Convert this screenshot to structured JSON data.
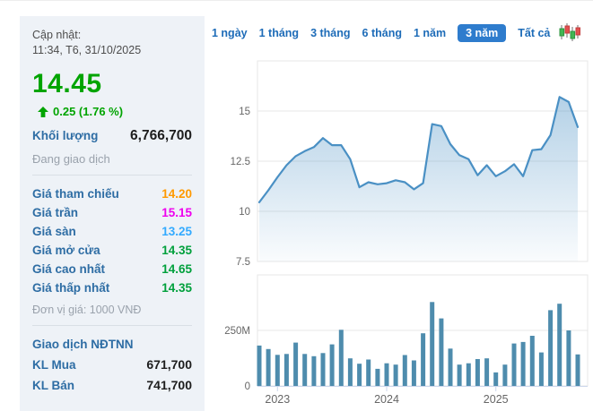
{
  "panel": {
    "updated_label": "Cập nhật:",
    "updated_time": "11:34, T6, 31/10/2025",
    "price": "14.45",
    "price_color": "#00a400",
    "change": "0.25 (1.76 %)",
    "volume_label": "Khối lượng",
    "volume_value": "6,766,700",
    "status": "Đang giao dịch",
    "rows": [
      {
        "label": "Giá tham chiếu",
        "value": "14.20",
        "color": "#ff9900"
      },
      {
        "label": "Giá trần",
        "value": "15.15",
        "color": "#ee00ee"
      },
      {
        "label": "Giá sàn",
        "value": "13.25",
        "color": "#33aaff"
      },
      {
        "label": "Giá mở cửa",
        "value": "14.35",
        "color": "#00a03c"
      },
      {
        "label": "Giá cao nhất",
        "value": "14.65",
        "color": "#00a03c"
      },
      {
        "label": "Giá thấp nhất",
        "value": "14.35",
        "color": "#00a03c"
      }
    ],
    "unit_note": "Đơn vị giá: 1000 VNĐ",
    "foreign_header": "Giao dịch NĐTNN",
    "foreign_rows": [
      {
        "label": "KL Mua",
        "value": "671,700"
      },
      {
        "label": "KL Bán",
        "value": "741,700"
      }
    ]
  },
  "tabs": {
    "items": [
      "1 ngày",
      "1 tháng",
      "3 tháng",
      "6 tháng",
      "1 năm",
      "3 năm",
      "Tất cả"
    ],
    "selected": "3 năm",
    "selected_bg": "#2e7ccd",
    "link_color": "#1e6cb8"
  },
  "chart_data": [
    {
      "type": "area",
      "title": "",
      "xlabel": "",
      "ylabel": "",
      "x": [
        "11/2022",
        "12/2022",
        "01/2023",
        "02/2023",
        "03/2023",
        "04/2023",
        "05/2023",
        "06/2023",
        "07/2023",
        "08/2023",
        "09/2023",
        "10/2023",
        "11/2023",
        "12/2023",
        "01/2024",
        "02/2024",
        "03/2024",
        "04/2024",
        "05/2024",
        "06/2024",
        "07/2024",
        "08/2024",
        "09/2024",
        "10/2024",
        "11/2024",
        "12/2024",
        "01/2025",
        "02/2025",
        "03/2025",
        "04/2025",
        "05/2025",
        "06/2025",
        "07/2025",
        "08/2025",
        "09/2025",
        "10/2025"
      ],
      "values": [
        10.45,
        11.05,
        11.7,
        12.3,
        12.75,
        13.0,
        13.2,
        13.65,
        13.3,
        13.3,
        12.6,
        11.2,
        11.45,
        11.35,
        11.4,
        11.55,
        11.45,
        11.1,
        11.4,
        14.35,
        14.25,
        13.35,
        12.8,
        12.6,
        11.8,
        12.3,
        11.75,
        12.0,
        12.35,
        11.75,
        13.05,
        13.1,
        13.8,
        15.7,
        15.45,
        14.2
      ],
      "ylim": [
        7.5,
        17.5
      ],
      "yticks": [
        7.5,
        10,
        12.5,
        15
      ],
      "ytick_labels": [
        "7.5",
        "10",
        "12.5",
        "15"
      ],
      "grid": true,
      "line_color": "#4a90c4",
      "fill_color": "#4a90c4",
      "legend": "none"
    },
    {
      "type": "bar",
      "title": "",
      "xlabel": "",
      "ylabel": "",
      "categories": [
        "11/2022",
        "12/2022",
        "01/2023",
        "02/2023",
        "03/2023",
        "04/2023",
        "05/2023",
        "06/2023",
        "07/2023",
        "08/2023",
        "09/2023",
        "10/2023",
        "11/2023",
        "12/2023",
        "01/2024",
        "02/2024",
        "03/2024",
        "04/2024",
        "05/2024",
        "06/2024",
        "07/2024",
        "08/2024",
        "09/2024",
        "10/2024",
        "11/2024",
        "12/2024",
        "01/2025",
        "02/2025",
        "03/2025",
        "04/2025",
        "05/2025",
        "06/2025",
        "07/2025",
        "08/2025",
        "09/2025",
        "10/2025"
      ],
      "values_millions": [
        182,
        166,
        140,
        144,
        195,
        144,
        134,
        148,
        187,
        253,
        124,
        100,
        119,
        77,
        102,
        96,
        139,
        115,
        237,
        378,
        304,
        168,
        96,
        102,
        121,
        124,
        61,
        96,
        191,
        198,
        226,
        151,
        341,
        370,
        250,
        142
      ],
      "ylim": [
        0,
        500
      ],
      "yticks": [
        0,
        250
      ],
      "ytick_labels": [
        "0",
        "250M"
      ],
      "grid": true,
      "bar_color": "#4e8cad",
      "year_labels": [
        {
          "label": "2023",
          "month_index": 2
        },
        {
          "label": "2024",
          "month_index": 14
        },
        {
          "label": "2025",
          "month_index": 26
        }
      ],
      "axis_line_color": "#ccd6eb",
      "grid_color": "#e7e7e7",
      "tick_text_color": "#666666"
    }
  ]
}
